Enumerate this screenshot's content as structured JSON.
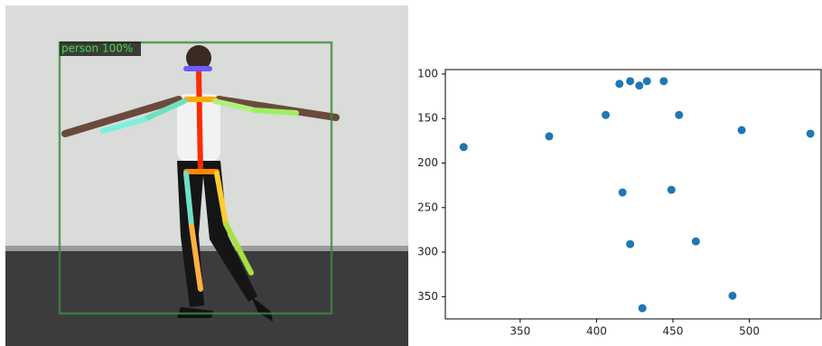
{
  "photo": {
    "label": "person 100%"
  },
  "chart_data": {
    "type": "scatter",
    "x": [
      313,
      369,
      406,
      415,
      422,
      428,
      433,
      444,
      454,
      495,
      540,
      417,
      449,
      422,
      465,
      489,
      430
    ],
    "values": [
      182,
      170,
      146,
      111,
      108,
      113,
      108,
      108,
      146,
      163,
      167,
      233,
      230,
      291,
      288,
      349,
      363
    ],
    "color": "#1f77b4",
    "xlim": [
      301,
      547
    ],
    "ylim": [
      375,
      95
    ],
    "xticks": [
      350,
      400,
      450,
      500
    ],
    "yticks": [
      100,
      150,
      200,
      250,
      300,
      350
    ],
    "grid": false
  }
}
